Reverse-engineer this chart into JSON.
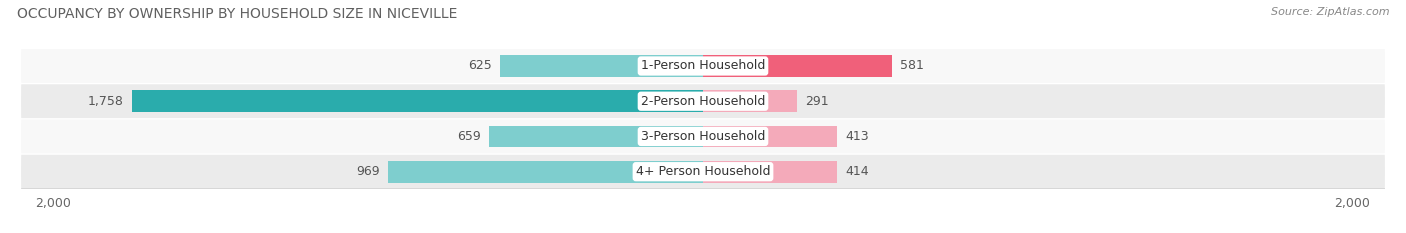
{
  "title": "OCCUPANCY BY OWNERSHIP BY HOUSEHOLD SIZE IN NICEVILLE",
  "source": "Source: ZipAtlas.com",
  "categories": [
    "1-Person Household",
    "2-Person Household",
    "3-Person Household",
    "4+ Person Household"
  ],
  "owner_values": [
    625,
    1758,
    659,
    969
  ],
  "renter_values": [
    581,
    291,
    413,
    414
  ],
  "owner_color_light": "#7ECECE",
  "owner_color_dark": "#2AACAC",
  "renter_color_light": "#F4AABA",
  "renter_color_dark": "#F0607A",
  "xlim": 2000,
  "background_color": "#ffffff",
  "title_fontsize": 10,
  "source_fontsize": 8,
  "label_fontsize": 9,
  "value_fontsize": 9,
  "tick_fontsize": 9,
  "bar_height": 0.62,
  "row_bg_colors": [
    "#f8f8f8",
    "#ebebeb"
  ],
  "title_color": "#606060",
  "value_color": "#555555",
  "category_color": "#333333"
}
